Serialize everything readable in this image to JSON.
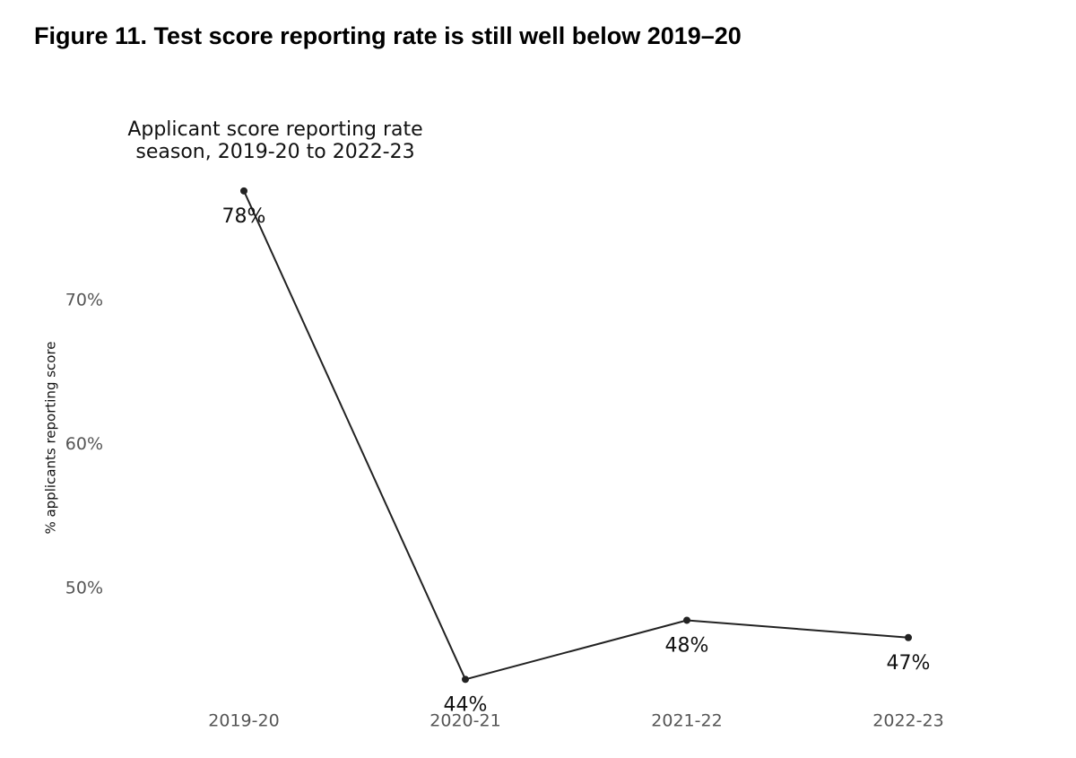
{
  "header": {
    "title": "Figure 11. Test score reporting rate is still well below 2019–20"
  },
  "chart_data": {
    "type": "line",
    "title": [
      "Applicant score reporting rate",
      "season, 2019-20 to 2022-23"
    ],
    "y_label": "% applicants reporting score",
    "categories": [
      "2019-20",
      "2020-21",
      "2021-22",
      "2022-23"
    ],
    "values": [
      77.6,
      43.7,
      47.8,
      46.6
    ],
    "value_labels": [
      "78%",
      "44%",
      "48%",
      "47%"
    ],
    "color": "#222222",
    "ylim": [
      42.6,
      78.4
    ],
    "yticks": [
      {
        "value": 50,
        "label": "50%"
      },
      {
        "value": 60,
        "label": "60%"
      },
      {
        "value": 70,
        "label": "70%"
      }
    ],
    "grid": false
  }
}
